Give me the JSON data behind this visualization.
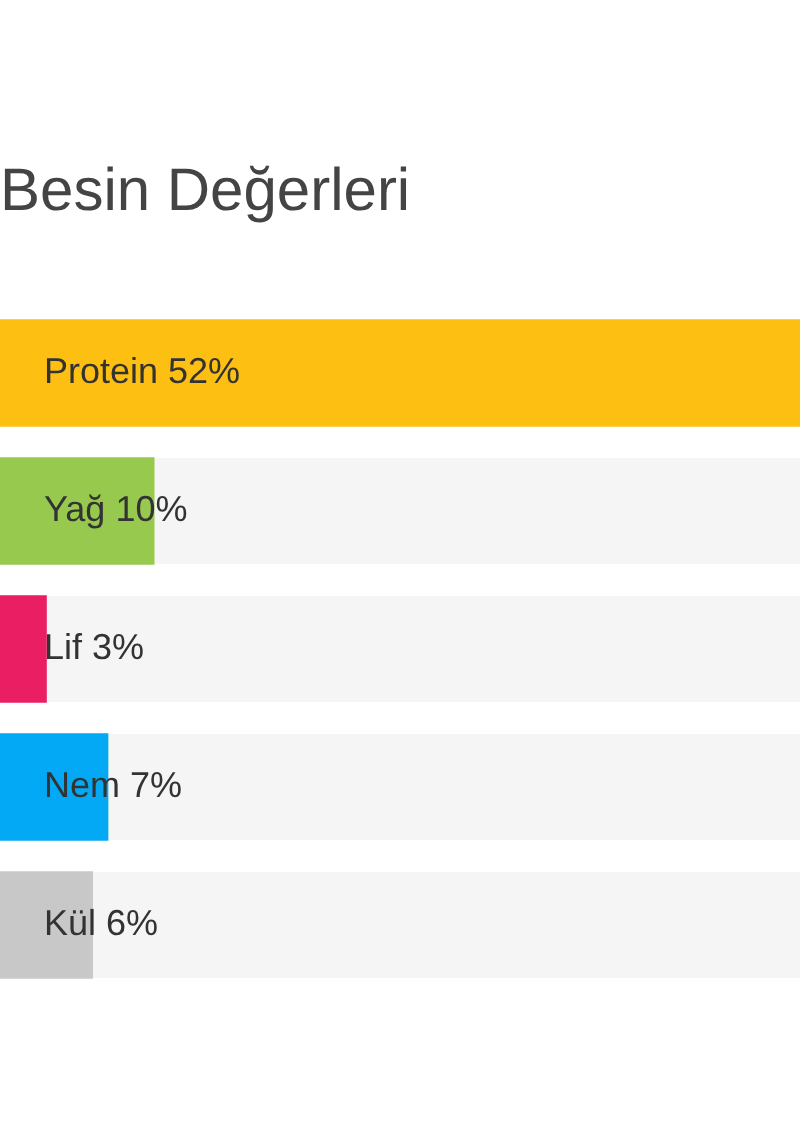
{
  "chart_data": {
    "type": "bar",
    "orientation": "horizontal",
    "title": "Besin Değerleri",
    "categories": [
      "Protein",
      "Yağ",
      "Lif",
      "Nem",
      "Kül"
    ],
    "values": [
      52,
      10,
      3,
      7,
      6
    ],
    "value_labels": [
      "52%",
      "10%",
      "3%",
      "7%",
      "6%"
    ],
    "colors": [
      "#fdbf12",
      "#97c94e",
      "#e91e63",
      "#03a9f4",
      "#c8c8c8"
    ],
    "tick_labels": false,
    "legend": false
  }
}
